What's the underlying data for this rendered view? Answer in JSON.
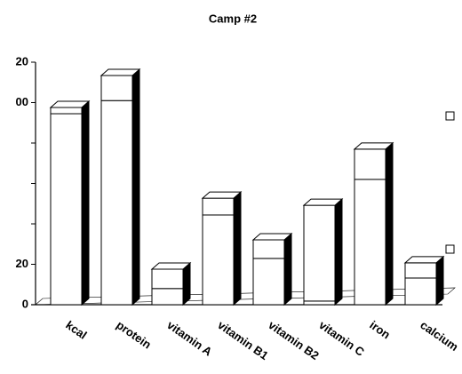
{
  "chart_data": {
    "type": "bar3d-stacked",
    "title": "Camp #2",
    "categories": [
      "kcal",
      "protein",
      "vitamin A",
      "vitamin B1",
      "vitamin B2",
      "vitamin C",
      "iron",
      "calcium"
    ],
    "series": [
      {
        "color": "#ffffff",
        "values": [
          94.5,
          101,
          8,
          44.4,
          22.9,
          1.8,
          62,
          13.2
        ]
      },
      {
        "color": "#ffffff",
        "values": [
          3.1,
          12.4,
          9.6,
          8.3,
          9.2,
          47.4,
          15,
          7.5
        ]
      }
    ],
    "ylim": [
      0,
      120
    ],
    "yticks": [
      0,
      20,
      {
        "value": 40,
        "label": null
      },
      {
        "value": 60,
        "label": null
      },
      {
        "value": 80,
        "label": null
      },
      {
        "value": 100,
        "label": "00"
      },
      {
        "value": 120,
        "label": "20"
      }
    ]
  }
}
